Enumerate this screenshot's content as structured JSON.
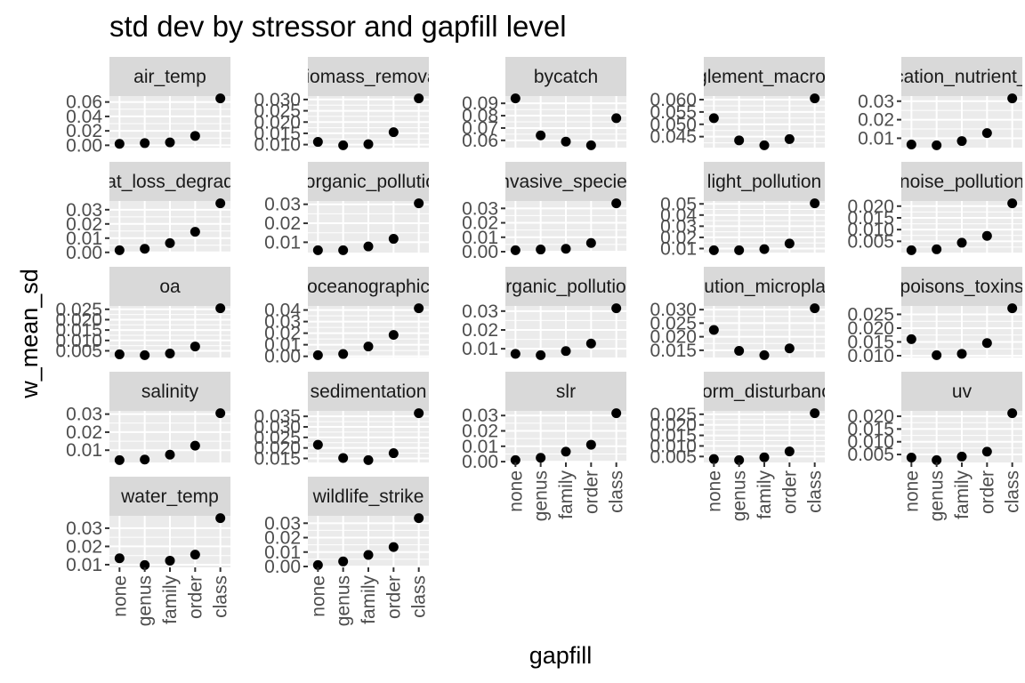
{
  "chart_data": {
    "type": "scatter",
    "title": "std dev by stressor and gapfill level",
    "xlabel": "gapfill",
    "ylabel": "w_mean_sd",
    "categories": [
      "none",
      "genus",
      "family",
      "order",
      "class"
    ],
    "grid": true,
    "point_color": "#000000",
    "panel_bg": "#EBEBEB",
    "strip_bg": "#D9D9D9",
    "panels": [
      {
        "name": "air_temp",
        "values": [
          0.002,
          0.003,
          0.004,
          0.013,
          0.065
        ],
        "ylim": [
          0.0,
          0.065
        ],
        "ticks": [
          0.0,
          0.02,
          0.04,
          0.06
        ],
        "tick_labels": [
          "0.00",
          "0.02",
          "0.04",
          "0.06"
        ]
      },
      {
        "name": "biomass_removal",
        "values": [
          0.0112,
          0.0097,
          0.0102,
          0.0155,
          0.0305
        ],
        "ylim": [
          0.0097,
          0.0305
        ],
        "ticks": [
          0.01,
          0.015,
          0.02,
          0.025,
          0.03
        ],
        "tick_labels": [
          "0.010",
          "0.015",
          "0.020",
          "0.025",
          "0.030"
        ]
      },
      {
        "name": "bycatch",
        "values": [
          0.094,
          0.064,
          0.059,
          0.056,
          0.078
        ],
        "ylim": [
          0.056,
          0.094
        ],
        "ticks": [
          0.06,
          0.07,
          0.08,
          0.09
        ],
        "tick_labels": [
          "0.06",
          "0.07",
          "0.08",
          "0.09"
        ]
      },
      {
        "name": "entanglement_macroplastic",
        "values": [
          0.0525,
          0.0435,
          0.0415,
          0.044,
          0.0605
        ],
        "ylim": [
          0.0415,
          0.0605
        ],
        "ticks": [
          0.04,
          0.045,
          0.05,
          0.055,
          0.06
        ],
        "tick_labels": [
          "0.040",
          "0.045",
          "0.050",
          "0.055",
          "0.060"
        ]
      },
      {
        "name": "eutrophication_nutrient_pollution",
        "values": [
          0.0066,
          0.0062,
          0.0085,
          0.0128,
          0.0315
        ],
        "ylim": [
          0.0062,
          0.0315
        ],
        "ticks": [
          0.01,
          0.02,
          0.03
        ],
        "tick_labels": [
          "0.01",
          "0.02",
          "0.03"
        ]
      },
      {
        "name": "habitat_loss_degradation",
        "values": [
          0.0015,
          0.0025,
          0.0065,
          0.0145,
          0.0345
        ],
        "ylim": [
          0.0015,
          0.0345
        ],
        "ticks": [
          0.0,
          0.01,
          0.02,
          0.03
        ],
        "tick_labels": [
          "0.00",
          "0.01",
          "0.02",
          "0.03"
        ]
      },
      {
        "name": "inorganic_pollution",
        "values": [
          0.0058,
          0.0058,
          0.0078,
          0.0118,
          0.0305
        ],
        "ylim": [
          0.0058,
          0.0305
        ],
        "ticks": [
          0.01,
          0.02,
          0.03
        ],
        "tick_labels": [
          "0.01",
          "0.02",
          "0.03"
        ]
      },
      {
        "name": "invasive_species",
        "values": [
          0.001,
          0.0015,
          0.002,
          0.006,
          0.0335
        ],
        "ylim": [
          0.001,
          0.0335
        ],
        "ticks": [
          0.0,
          0.01,
          0.02,
          0.03
        ],
        "tick_labels": [
          "0.00",
          "0.01",
          "0.02",
          "0.03"
        ]
      },
      {
        "name": "light_pollution",
        "values": [
          0.0085,
          0.0085,
          0.0095,
          0.0145,
          0.0505
        ],
        "ylim": [
          0.0085,
          0.0505
        ],
        "ticks": [
          0.01,
          0.02,
          0.03,
          0.04,
          0.05
        ],
        "tick_labels": [
          "0.01",
          "0.02",
          "0.03",
          "0.04",
          "0.05"
        ]
      },
      {
        "name": "noise_pollution",
        "values": [
          0.0012,
          0.0016,
          0.0044,
          0.0073,
          0.0212
        ],
        "ylim": [
          0.0012,
          0.0212
        ],
        "ticks": [
          0.0,
          0.005,
          0.01,
          0.015,
          0.02
        ],
        "tick_labels": [
          "0.000",
          "0.005",
          "0.010",
          "0.015",
          "0.020"
        ]
      },
      {
        "name": "oa",
        "values": [
          0.0033,
          0.0029,
          0.0037,
          0.0071,
          0.0255
        ],
        "ylim": [
          0.0029,
          0.0255
        ],
        "ticks": [
          0.005,
          0.01,
          0.015,
          0.02,
          0.025
        ],
        "tick_labels": [
          "0.005",
          "0.010",
          "0.015",
          "0.020",
          "0.025"
        ]
      },
      {
        "name": "oceanographic",
        "values": [
          0.001,
          0.002,
          0.0085,
          0.0185,
          0.0415
        ],
        "ylim": [
          0.001,
          0.0415
        ],
        "ticks": [
          0.0,
          0.01,
          0.02,
          0.03,
          0.04
        ],
        "tick_labels": [
          "0.00",
          "0.01",
          "0.02",
          "0.03",
          "0.04"
        ]
      },
      {
        "name": "organic_pollution",
        "values": [
          0.0073,
          0.0066,
          0.0088,
          0.0128,
          0.0315
        ],
        "ylim": [
          0.0066,
          0.0315
        ],
        "ticks": [
          0.01,
          0.02,
          0.03
        ],
        "tick_labels": [
          "0.01",
          "0.02",
          "0.03"
        ]
      },
      {
        "name": "pollution_microplastic",
        "values": [
          0.0225,
          0.0148,
          0.0132,
          0.0157,
          0.0305
        ],
        "ylim": [
          0.0132,
          0.0305
        ],
        "ticks": [
          0.015,
          0.02,
          0.025,
          0.03
        ],
        "tick_labels": [
          "0.015",
          "0.020",
          "0.025",
          "0.030"
        ]
      },
      {
        "name": "poisons_toxins",
        "values": [
          0.016,
          0.0102,
          0.0107,
          0.0146,
          0.0272
        ],
        "ylim": [
          0.0102,
          0.0272
        ],
        "ticks": [
          0.01,
          0.015,
          0.02,
          0.025
        ],
        "tick_labels": [
          "0.010",
          "0.015",
          "0.020",
          "0.025"
        ]
      },
      {
        "name": "salinity",
        "values": [
          0.0045,
          0.0048,
          0.0075,
          0.0125,
          0.0305
        ],
        "ylim": [
          0.0045,
          0.0305
        ],
        "ticks": [
          0.01,
          0.02,
          0.03
        ],
        "tick_labels": [
          "0.01",
          "0.02",
          "0.03"
        ]
      },
      {
        "name": "sedimentation",
        "values": [
          0.0215,
          0.0152,
          0.0142,
          0.0175,
          0.0365
        ],
        "ylim": [
          0.0142,
          0.0365
        ],
        "ticks": [
          0.015,
          0.02,
          0.025,
          0.03,
          0.035
        ],
        "tick_labels": [
          "0.015",
          "0.020",
          "0.025",
          "0.030",
          "0.035"
        ]
      },
      {
        "name": "slr",
        "values": [
          0.001,
          0.0025,
          0.0065,
          0.011,
          0.0315
        ],
        "ylim": [
          0.001,
          0.0315
        ],
        "ticks": [
          0.0,
          0.01,
          0.02,
          0.03
        ],
        "tick_labels": [
          "0.00",
          "0.01",
          "0.02",
          "0.03"
        ]
      },
      {
        "name": "storm_disturbance",
        "values": [
          0.0038,
          0.0033,
          0.0046,
          0.0074,
          0.0255
        ],
        "ylim": [
          0.0033,
          0.0255
        ],
        "ticks": [
          0.005,
          0.01,
          0.015,
          0.02,
          0.025
        ],
        "tick_labels": [
          "0.005",
          "0.010",
          "0.015",
          "0.020",
          "0.025"
        ]
      },
      {
        "name": "uv",
        "values": [
          0.0038,
          0.0028,
          0.0042,
          0.0061,
          0.0212
        ],
        "ylim": [
          0.0028,
          0.0212
        ],
        "ticks": [
          0.005,
          0.01,
          0.015,
          0.02
        ],
        "tick_labels": [
          "0.005",
          "0.010",
          "0.015",
          "0.020"
        ]
      },
      {
        "name": "water_temp",
        "values": [
          0.0135,
          0.0098,
          0.0122,
          0.0155,
          0.0355
        ],
        "ylim": [
          0.0098,
          0.0355
        ],
        "ticks": [
          0.01,
          0.02,
          0.03
        ],
        "tick_labels": [
          "0.01",
          "0.02",
          "0.03"
        ]
      },
      {
        "name": "wildlife_strike",
        "values": [
          0.001,
          0.0035,
          0.008,
          0.0135,
          0.0335
        ],
        "ylim": [
          0.001,
          0.0335
        ],
        "ticks": [
          0.0,
          0.01,
          0.02,
          0.03
        ],
        "tick_labels": [
          "0.00",
          "0.01",
          "0.02",
          "0.03"
        ]
      }
    ]
  }
}
